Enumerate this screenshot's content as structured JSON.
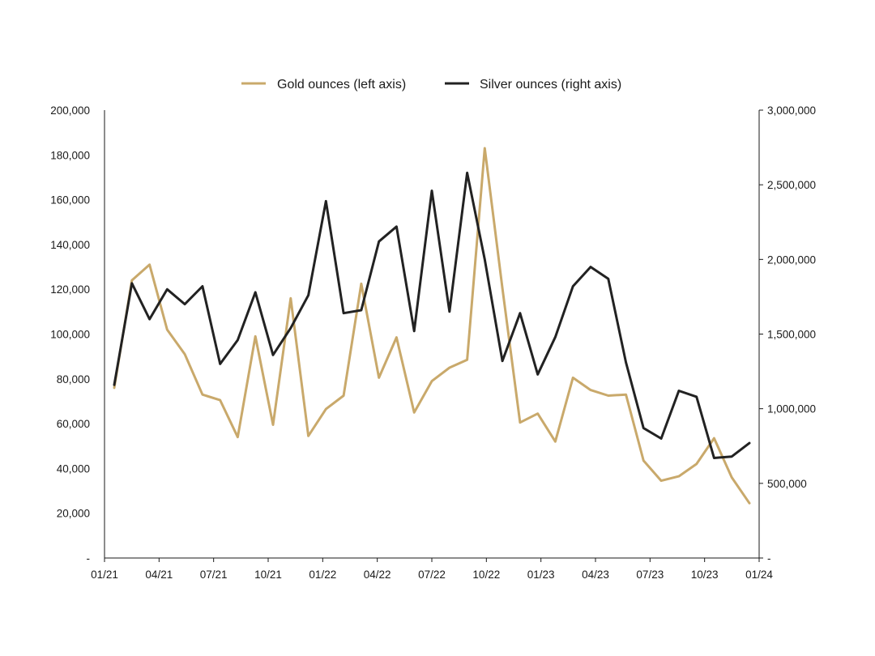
{
  "chart_data": {
    "type": "line",
    "title": "",
    "xlabel": "",
    "ylabel": "",
    "y2label": "",
    "grid": false,
    "legend_position": "top-center",
    "x_tick_labels": [
      "01/21",
      "04/21",
      "07/21",
      "10/21",
      "01/22",
      "04/22",
      "07/22",
      "10/22",
      "01/23",
      "04/23",
      "07/23",
      "10/23",
      "01/24"
    ],
    "y_left": {
      "range": [
        0,
        200000
      ],
      "tick_labels": [
        "-",
        "20,000",
        "40,000",
        "60,000",
        "80,000",
        "100,000",
        "120,000",
        "140,000",
        "160,000",
        "180,000",
        "200,000"
      ]
    },
    "y_right": {
      "range": [
        0,
        3000000
      ],
      "tick_labels": [
        "-",
        "500,000",
        "1,000,000",
        "1,500,000",
        "2,000,000",
        "2,500,000",
        "3,000,000"
      ]
    },
    "series": [
      {
        "name": "Gold ounces (left axis)",
        "axis": "left",
        "color": "#c9a96b",
        "values": [
          76000,
          124000,
          131000,
          102000,
          91000,
          73000,
          70500,
          54000,
          99000,
          59500,
          116000,
          54500,
          66500,
          72500,
          122500,
          80500,
          98500,
          65000,
          79000,
          85000,
          88500,
          183000,
          120500,
          60500,
          64500,
          52000,
          80500,
          75000,
          72500,
          73000,
          43500,
          34500,
          36500,
          42000,
          53500,
          36000,
          24500
        ]
      },
      {
        "name": "Silver ounces (right axis)",
        "axis": "left_hidden",
        "color": "#222222",
        "axis_right": true,
        "values": [
          1160000,
          1840000,
          1600000,
          1800000,
          1700000,
          1820000,
          1300000,
          1460000,
          1780000,
          1360000,
          1540000,
          1760000,
          2390000,
          1640000,
          1660000,
          2120000,
          2220000,
          1520000,
          2460000,
          1650000,
          2580000,
          2000000,
          1320000,
          1640000,
          1230000,
          1480000,
          1820000,
          1950000,
          1870000,
          1310000,
          870000,
          800000,
          1120000,
          1080000,
          670000,
          680000,
          770000
        ]
      }
    ]
  }
}
